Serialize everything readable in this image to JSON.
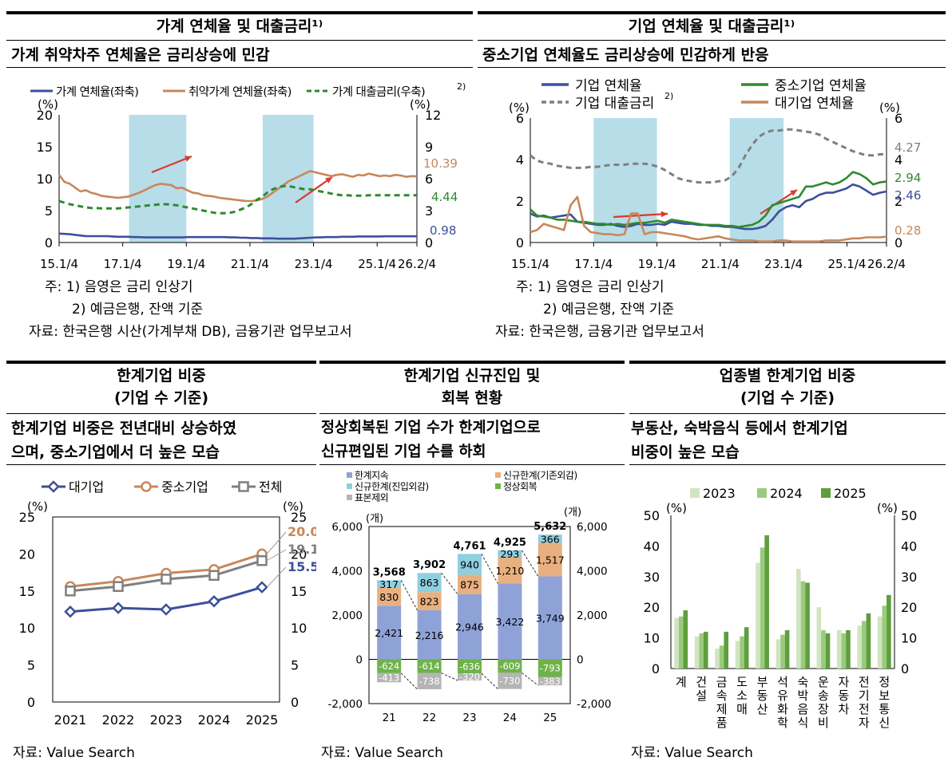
{
  "panels": {
    "p1": {
      "title": "가계 연체율 및 대출금리¹⁾",
      "subtitle": "가계 취약차주 연체율은 금리상승에 민감",
      "notes": [
        "주: 1) 음영은 금리 인상기",
        "2) 예금은행, 잔액 기준",
        "자료: 한국은행 시산(가계부채 DB), 금융기관 업무보고서"
      ]
    },
    "p2": {
      "title": "기업 연체율 및 대출금리¹⁾",
      "subtitle": "중소기업 연체율도 금리상승에 민감하게 반응",
      "notes": [
        "주: 1) 음영은 금리 인상기",
        "2) 예금은행, 잔액 기준",
        "자료: 한국은행, 금융기관 업무보고서"
      ]
    },
    "p3": {
      "title_lines": [
        "한계기업 비중",
        "(기업 수 기준)"
      ],
      "subtitle_lines": [
        "한계기업 비중은 전년대비 상승하였",
        "으며, 중소기업에서 더 높은 모습"
      ],
      "source": "자료: Value Search"
    },
    "p4": {
      "title_lines": [
        "한계기업 신규진입 및",
        "회복 현황"
      ],
      "subtitle_lines": [
        "정상회복된 기업 수가 한계기업으로",
        "신규편입된 기업 수를 하회"
      ],
      "source": "자료: Value Search"
    },
    "p5": {
      "title_lines": [
        "업종별 한계기업 비중",
        "(기업 수 기준)"
      ],
      "subtitle_lines": [
        "부동산, 숙박음식 등에서 한계기업",
        "비중이 높은 모습"
      ],
      "source": "자료: Value Search"
    }
  },
  "colors": {
    "blue": "#3d4f9b",
    "orange": "#c8875a",
    "green": "#2f8a2f",
    "gray": "#7f7f7f",
    "shade": "#b7dde8",
    "red": "#d93a2b",
    "bar_blue": "#8fa2d8",
    "bar_orange": "#e8b080",
    "bar_cyan": "#8ecfe0",
    "bar_green": "#6fb24a",
    "bar_gray": "#b5b5b5",
    "ind_2023": "#cfe5bf",
    "ind_2024": "#9bca7e",
    "ind_2025": "#5e9e3c"
  },
  "chart_data": [
    {
      "id": "household",
      "type": "line",
      "left_unit": "(%)",
      "right_unit": "(%)",
      "left_ylim": [
        0,
        20
      ],
      "right_ylim": [
        0,
        12
      ],
      "left_ticks": [
        "0",
        "5",
        "10",
        "15",
        "20"
      ],
      "right_ticks": [
        "0",
        "3",
        "6",
        "9",
        "12"
      ],
      "x_ticks": [
        "15.1/4",
        "17.1/4",
        "19.1/4",
        "21.1/4",
        "23.1/4",
        "25.1/4",
        "26.2/4"
      ],
      "x_tick_values": [
        2015.0,
        2017.0,
        2019.0,
        2021.0,
        2023.0,
        2025.0,
        2026.25
      ],
      "x_range": [
        2015.0,
        2026.25
      ],
      "shaded_periods": [
        [
          2017.2,
          2019.0
        ],
        [
          2021.4,
          2023.0
        ]
      ],
      "legend": [
        "가계 연체율(좌축)",
        "취약가계 연체율(좌축)",
        "가계 대출금리(우축)"
      ],
      "legend_sup": "2)",
      "end_labels": [
        "10.39",
        "4.44",
        "0.98"
      ],
      "series": [
        {
          "name": "가계 연체율(좌축)",
          "axis": "left",
          "style": "solid",
          "color_key": "blue",
          "values": [
            1.4,
            1.35,
            1.3,
            1.2,
            1.1,
            1.0,
            1.0,
            1.0,
            1.0,
            1.0,
            0.95,
            0.9,
            0.9,
            0.9,
            0.85,
            0.85,
            0.8,
            0.8,
            0.8,
            0.8,
            0.8,
            0.8,
            0.8,
            0.8,
            0.85,
            0.85,
            0.85,
            0.85,
            0.85,
            0.85,
            0.85,
            0.85,
            0.8,
            0.8,
            0.75,
            0.75,
            0.7,
            0.7,
            0.65,
            0.65,
            0.65,
            0.6,
            0.6,
            0.6,
            0.6,
            0.65,
            0.7,
            0.75,
            0.8,
            0.8,
            0.85,
            0.85,
            0.85,
            0.9,
            0.9,
            0.9,
            0.95,
            0.95,
            0.95,
            0.95,
            0.95,
            0.98,
            0.98,
            0.98,
            0.98,
            0.98,
            0.97,
            0.98
          ]
        },
        {
          "name": "취약가계 연체율(좌축)",
          "axis": "left",
          "style": "solid",
          "color_key": "orange",
          "values": [
            10.6,
            9.5,
            9.2,
            8.6,
            8.0,
            8.2,
            7.8,
            7.6,
            7.3,
            7.2,
            7.1,
            7.0,
            7.1,
            7.2,
            7.5,
            7.8,
            8.2,
            8.6,
            9.0,
            9.2,
            9.1,
            9.0,
            8.5,
            8.6,
            8.2,
            7.8,
            7.7,
            7.4,
            7.3,
            7.2,
            7.0,
            6.9,
            6.8,
            6.7,
            6.6,
            6.5,
            6.5,
            6.6,
            6.8,
            7.2,
            7.8,
            8.4,
            9.0,
            9.6,
            10.0,
            10.4,
            10.8,
            11.2,
            11.0,
            10.8,
            10.6,
            10.4,
            10.6,
            10.7,
            10.5,
            10.3,
            10.6,
            10.5,
            10.8,
            10.6,
            10.4,
            10.5,
            10.4,
            10.6,
            10.5,
            10.3,
            10.4,
            10.39
          ]
        },
        {
          "name": "가계 대출금리(우축)",
          "axis": "right",
          "style": "dashed",
          "color_key": "green",
          "values": [
            3.9,
            3.75,
            3.6,
            3.5,
            3.4,
            3.3,
            3.25,
            3.25,
            3.2,
            3.2,
            3.2,
            3.2,
            3.25,
            3.3,
            3.35,
            3.4,
            3.45,
            3.5,
            3.55,
            3.6,
            3.6,
            3.55,
            3.5,
            3.4,
            3.3,
            3.2,
            3.1,
            3.0,
            2.9,
            2.8,
            2.75,
            2.75,
            2.8,
            2.9,
            3.1,
            3.3,
            3.6,
            4.0,
            4.3,
            4.7,
            5.0,
            5.2,
            5.3,
            5.3,
            5.2,
            5.1,
            5.0,
            5.0,
            4.9,
            4.8,
            4.7,
            4.6,
            4.5,
            4.45,
            4.45,
            4.4,
            4.4,
            4.4,
            4.45,
            4.45,
            4.44,
            4.44,
            4.44,
            4.44,
            4.44,
            4.44,
            4.44,
            4.44
          ]
        }
      ]
    },
    {
      "id": "corporate",
      "type": "line",
      "left_unit": "(%)",
      "right_unit": "(%)",
      "left_ylim": [
        0,
        6
      ],
      "right_ylim": [
        0,
        6
      ],
      "left_ticks": [
        "0",
        "2",
        "4",
        "6"
      ],
      "right_ticks": [
        "0",
        "2",
        "4",
        "6"
      ],
      "x_ticks": [
        "15.1/4",
        "17.1/4",
        "19.1/4",
        "21.1/4",
        "23.1/4",
        "25.1/4",
        "26.2/4"
      ],
      "x_tick_values": [
        2015.0,
        2017.0,
        2019.0,
        2021.0,
        2023.0,
        2025.0,
        2026.25
      ],
      "x_range": [
        2015.0,
        2026.25
      ],
      "shaded_periods": [
        [
          2017.0,
          2019.0
        ],
        [
          2021.3,
          2023.0
        ]
      ],
      "legend": [
        "기업 연체율",
        "기업 대출금리",
        "중소기업 연체율",
        "대기업 연체율"
      ],
      "legend_sup": "2)",
      "end_labels": [
        "4.27",
        "2.94",
        "2.46",
        "0.28"
      ],
      "series": [
        {
          "name": "기업 연체율",
          "axis": "left",
          "style": "solid",
          "color_key": "blue",
          "values": [
            1.4,
            1.25,
            1.3,
            1.2,
            1.25,
            1.3,
            1.35,
            1.0,
            0.95,
            0.9,
            0.85,
            0.85,
            0.9,
            0.8,
            0.75,
            0.8,
            0.9,
            0.85,
            0.85,
            0.9,
            0.85,
            1.0,
            0.95,
            0.9,
            0.9,
            0.85,
            0.85,
            0.8,
            0.8,
            0.75,
            0.75,
            0.7,
            0.65,
            0.65,
            0.7,
            0.8,
            1.1,
            1.5,
            1.7,
            1.8,
            1.7,
            2.0,
            2.1,
            2.3,
            2.4,
            2.4,
            2.5,
            2.6,
            2.8,
            2.7,
            2.5,
            2.3,
            2.4,
            2.46
          ]
        },
        {
          "name": "기업 대출금리",
          "axis": "left",
          "style": "dashed",
          "color_key": "gray",
          "values": [
            4.2,
            3.95,
            3.85,
            3.8,
            3.7,
            3.65,
            3.6,
            3.6,
            3.6,
            3.65,
            3.65,
            3.7,
            3.75,
            3.75,
            3.75,
            3.8,
            3.8,
            3.8,
            3.75,
            3.65,
            3.5,
            3.3,
            3.1,
            3.0,
            2.95,
            2.9,
            2.9,
            2.9,
            2.95,
            3.0,
            3.2,
            3.6,
            4.2,
            4.7,
            5.1,
            5.3,
            5.4,
            5.4,
            5.45,
            5.45,
            5.4,
            5.35,
            5.3,
            5.2,
            5.0,
            4.85,
            4.7,
            4.55,
            4.4,
            4.3,
            4.2,
            4.2,
            4.25,
            4.27
          ]
        },
        {
          "name": "중소기업 연체율",
          "axis": "left",
          "style": "solid",
          "color_key": "green",
          "values": [
            1.6,
            1.3,
            1.25,
            1.2,
            1.1,
            1.1,
            1.05,
            1.0,
            1.0,
            0.95,
            0.9,
            0.9,
            0.85,
            0.9,
            0.85,
            0.9,
            0.95,
            0.95,
            1.0,
            1.05,
            0.95,
            1.1,
            1.05,
            1.0,
            0.95,
            0.9,
            0.85,
            0.85,
            0.85,
            0.8,
            0.8,
            0.75,
            0.8,
            0.85,
            1.0,
            1.3,
            1.8,
            1.9,
            2.0,
            2.1,
            2.2,
            2.7,
            2.7,
            2.8,
            2.9,
            2.8,
            2.9,
            3.1,
            3.4,
            3.3,
            3.1,
            2.8,
            2.9,
            2.94
          ]
        },
        {
          "name": "대기업 연체율",
          "axis": "left",
          "style": "solid",
          "color_key": "orange",
          "values": [
            0.5,
            0.6,
            0.9,
            0.8,
            0.7,
            0.6,
            1.8,
            2.2,
            0.8,
            0.5,
            0.45,
            0.4,
            0.4,
            0.35,
            0.4,
            1.4,
            1.4,
            0.4,
            0.5,
            0.5,
            0.45,
            0.4,
            0.35,
            0.3,
            0.2,
            0.15,
            0.2,
            0.25,
            0.3,
            0.2,
            0.15,
            0.1,
            0.1,
            0.1,
            0.05,
            0.05,
            0.05,
            0.1,
            0.1,
            0.05,
            0.05,
            0.05,
            0.05,
            0.05,
            0.1,
            0.1,
            0.1,
            0.15,
            0.2,
            0.2,
            0.25,
            0.25,
            0.25,
            0.28
          ]
        }
      ]
    },
    {
      "id": "zombie_share",
      "type": "line",
      "unit": "(%)",
      "categories": [
        "2021",
        "2022",
        "2023",
        "2024",
        "2025"
      ],
      "ylim": [
        0,
        25
      ],
      "y_ticks": [
        "0",
        "5",
        "10",
        "15",
        "20",
        "25"
      ],
      "legend": [
        "대기업",
        "중소기업",
        "전체"
      ],
      "end_labels": [
        "20.0",
        "19.1",
        "15.5"
      ],
      "series": [
        {
          "name": "대기업",
          "color_key": "blue",
          "marker": "diamond",
          "values": [
            12.2,
            12.7,
            12.5,
            13.6,
            15.5
          ]
        },
        {
          "name": "중소기업",
          "color_key": "orange",
          "marker": "circle",
          "values": [
            15.6,
            16.3,
            17.4,
            17.9,
            20.0
          ]
        },
        {
          "name": "전체",
          "color_key": "gray",
          "marker": "square",
          "values": [
            15.0,
            15.6,
            16.6,
            17.1,
            19.1
          ]
        }
      ]
    },
    {
      "id": "entry_exit",
      "type": "bar",
      "unit": "(개)",
      "categories": [
        "21",
        "22",
        "23",
        "24",
        "25"
      ],
      "ylim": [
        -2000,
        6000
      ],
      "y_ticks": [
        "-2,000",
        "0",
        "2,000",
        "4,000",
        "6,000"
      ],
      "y_tick_values": [
        -2000,
        0,
        2000,
        4000,
        6000
      ],
      "legend": [
        "한계지속",
        "신규한계(기존외감)",
        "신규한계(진입외감)",
        "정상회복",
        "표본제외"
      ],
      "totals": [
        "3,568",
        "3,902",
        "4,761",
        "4,925",
        "5,632"
      ],
      "total_values": [
        3568,
        3902,
        4761,
        4925,
        5632
      ],
      "series": [
        {
          "name": "한계지속",
          "color_key": "bar_blue",
          "values": [
            2421,
            2216,
            2946,
            3422,
            3749
          ],
          "labels": [
            "2,421",
            "2,216",
            "2,946",
            "3,422",
            "3,749"
          ]
        },
        {
          "name": "신규한계(기존외감)",
          "color_key": "bar_orange",
          "values": [
            830,
            823,
            875,
            1210,
            1517
          ],
          "labels": [
            "830",
            "823",
            "875",
            "1,210",
            "1,517"
          ]
        },
        {
          "name": "신규한계(진입외감)",
          "color_key": "bar_cyan",
          "values": [
            317,
            863,
            940,
            293,
            366
          ],
          "labels": [
            "317",
            "863",
            "940",
            "293",
            "366"
          ]
        },
        {
          "name": "정상회복",
          "color_key": "bar_green",
          "values": [
            -624,
            -614,
            -636,
            -609,
            -793
          ],
          "labels": [
            "-624",
            "-614",
            "-636",
            "-609",
            "-793"
          ]
        },
        {
          "name": "표본제외",
          "color_key": "bar_gray",
          "values": [
            -413,
            -738,
            -320,
            -730,
            -383
          ],
          "labels": [
            "-413",
            "-738",
            "-320",
            "-730",
            "-383"
          ]
        }
      ]
    },
    {
      "id": "by_industry",
      "type": "bar",
      "unit": "(%)",
      "categories": [
        "계",
        "건설",
        "금속제품",
        "도소매",
        "부동산",
        "석유화학",
        "숙박음식",
        "운송장비",
        "자동차",
        "전기전자",
        "정보통신"
      ],
      "ylim": [
        0,
        50
      ],
      "y_ticks": [
        "0",
        "10",
        "20",
        "30",
        "40",
        "50"
      ],
      "legend": [
        "2023",
        "2024",
        "2025"
      ],
      "series": [
        {
          "name": "2023",
          "color_key": "ind_2023",
          "values": [
            16.5,
            10.5,
            6.5,
            9.0,
            34.5,
            9.5,
            32.5,
            20.0,
            12.5,
            14.0,
            17.0
          ]
        },
        {
          "name": "2024",
          "color_key": "ind_2024",
          "values": [
            17.0,
            11.5,
            7.5,
            10.5,
            39.5,
            11.0,
            28.5,
            12.5,
            11.5,
            15.5,
            20.5
          ]
        },
        {
          "name": "2025",
          "color_key": "ind_2025",
          "values": [
            19.0,
            12.0,
            12.0,
            13.5,
            43.5,
            12.5,
            28.0,
            11.5,
            12.5,
            18.0,
            24.0
          ]
        }
      ]
    }
  ]
}
